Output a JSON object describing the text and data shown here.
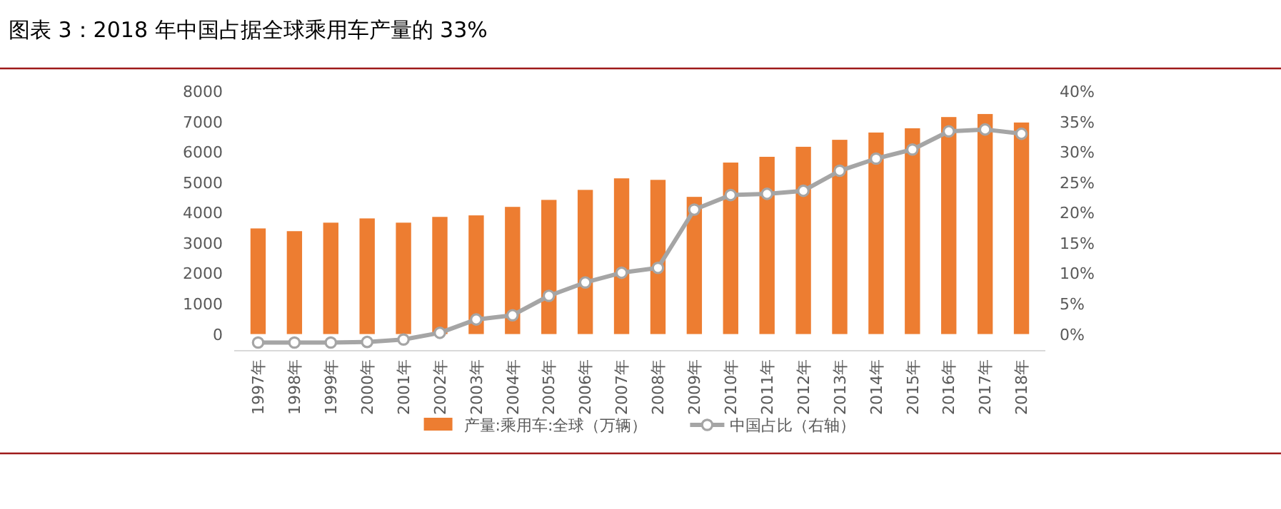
{
  "chart_data": {
    "type": "bar",
    "title": "图表 3：2018 年中国占据全球乘用车产量的 33%",
    "categories": [
      "1997年",
      "1998年",
      "1999年",
      "2000年",
      "2001年",
      "2002年",
      "2003年",
      "2004年",
      "2005年",
      "2006年",
      "2007年",
      "2008年",
      "2009年",
      "2010年",
      "2011年",
      "2012年",
      "2013年",
      "2014年",
      "2015年",
      "2016年",
      "2017年",
      "2018年"
    ],
    "series": [
      {
        "name": "产量:乘用车:全球（万辆）",
        "color": "#ed7d31",
        "values": [
          3480,
          3390,
          3670,
          3810,
          3670,
          3860,
          3910,
          4190,
          4420,
          4750,
          5130,
          5080,
          4520,
          5650,
          5840,
          6170,
          6400,
          6640,
          6780,
          7150,
          7250,
          6970
        ]
      },
      {
        "name": "中国占比（右轴）",
        "type": "line",
        "axis": "y2",
        "color": "#a5a5a5",
        "marker": "circle",
        "values": [
          -1.4,
          -1.4,
          -1.4,
          -1.3,
          -0.9,
          0.2,
          2.4,
          3.1,
          6.3,
          8.5,
          10.1,
          10.9,
          20.5,
          22.9,
          23.1,
          23.6,
          26.9,
          28.9,
          30.4,
          33.4,
          33.7,
          33.0
        ]
      }
    ],
    "ylim": [
      -550,
      8000
    ],
    "yticks": [
      0,
      1000,
      2000,
      3000,
      4000,
      5000,
      6000,
      7000,
      8000
    ],
    "y2lim": [
      -2.75,
      40
    ],
    "y2ticks": [
      {
        "value": 0,
        "label": "0%"
      },
      {
        "value": 5,
        "label": "5%"
      },
      {
        "value": 10,
        "label": "10%"
      },
      {
        "value": 15,
        "label": "15%"
      },
      {
        "value": 20,
        "label": "20%"
      },
      {
        "value": 25,
        "label": "25%"
      },
      {
        "value": 30,
        "label": "30%"
      },
      {
        "value": 35,
        "label": "35%"
      },
      {
        "value": 40,
        "label": "40%"
      }
    ],
    "legend": "bottom"
  }
}
